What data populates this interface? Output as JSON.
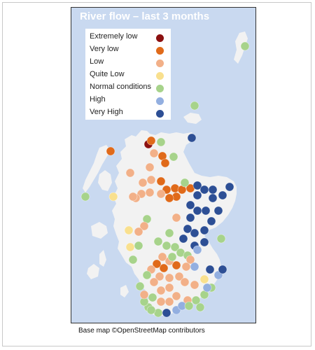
{
  "title": "River flow – last 3 months",
  "credit": "Base map ©OpenStreetMap contributors",
  "colors": {
    "water": "#c9d9f0",
    "land": "#f2f2f2"
  },
  "legend": [
    {
      "label": "Extremely low",
      "color": "#8b1010"
    },
    {
      "label": "Very low",
      "color": "#e06a1a"
    },
    {
      "label": "Low",
      "color": "#f2b088"
    },
    {
      "label": "Quite Low",
      "color": "#f9e08e"
    },
    {
      "label": "Normal conditions",
      "color": "#a7d38b"
    },
    {
      "label": "High",
      "color": "#93afe0"
    },
    {
      "label": "Very High",
      "color": "#2d4f95"
    }
  ]
}
